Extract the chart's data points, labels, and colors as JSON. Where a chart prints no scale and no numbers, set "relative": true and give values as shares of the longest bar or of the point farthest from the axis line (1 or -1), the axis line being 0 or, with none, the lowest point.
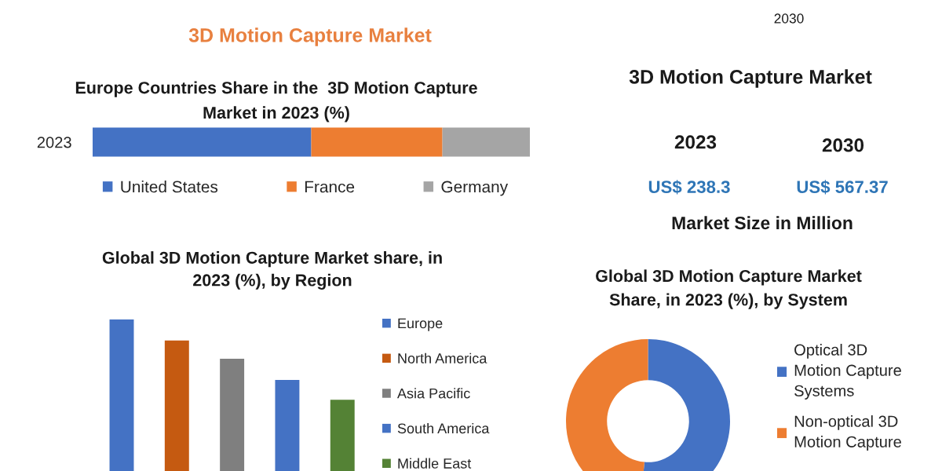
{
  "chart_data": [
    {
      "type": "other",
      "title": "3D Motion Capture Market",
      "annotations": [
        "2030"
      ]
    },
    {
      "type": "bar",
      "title": "Europe Countries Share in the  3D Motion Capture Market in 2023 (%)",
      "categories": [
        "2023"
      ],
      "series": [
        {
          "name": "United States",
          "color": "#4472c4",
          "values": [
            0.5
          ]
        },
        {
          "name": "France",
          "color": "#ed7d31",
          "values": [
            0.3
          ]
        },
        {
          "name": "Germany",
          "color": "#a5a5a5",
          "values": [
            0.2
          ]
        }
      ],
      "stacked": true,
      "orientation": "horizontal",
      "relative": true,
      "legend": "bottom",
      "tick_labels": "y"
    },
    {
      "type": "other",
      "title": "3D Motion Capture Market",
      "annotations": [
        "2023",
        "2030",
        "US$ 238.3",
        "US$ 567.37",
        "Market Size in Million"
      ]
    },
    {
      "type": "bar",
      "title": "Global 3D Motion Capture Market share, in 2023 (%), by Region",
      "categories": [
        null,
        null,
        null,
        null,
        null
      ],
      "series": [
        {
          "name": "Europe",
          "color": "#4472c4",
          "values": [
            1,
            null,
            null,
            null,
            null
          ]
        },
        {
          "name": "North America",
          "color": "#c55a11",
          "values": [
            null,
            0.86,
            null,
            null,
            null
          ]
        },
        {
          "name": "Asia Pacific",
          "color": "#7f7f7f",
          "values": [
            null,
            null,
            0.74,
            null,
            null
          ]
        },
        {
          "name": "South America",
          "color": "#4472c4",
          "values": [
            null,
            null,
            null,
            0.6,
            null
          ]
        },
        {
          "name": "Middle East",
          "color": "#548235",
          "values": [
            null,
            null,
            null,
            null,
            0.47
          ]
        }
      ],
      "stacked": true,
      "relative": true,
      "legend": "right"
    },
    {
      "type": "donut",
      "title": "Global 3D Motion Capture Market Share, in 2023 (%), by System",
      "categories": [
        "Optical 3D Motion Capture Systems",
        "Non-optical 3D Motion Capture"
      ],
      "values": [
        51.4,
        48.6
      ],
      "colors": [
        "#4472c4",
        "#ed7d31"
      ],
      "legend": "right"
    }
  ]
}
